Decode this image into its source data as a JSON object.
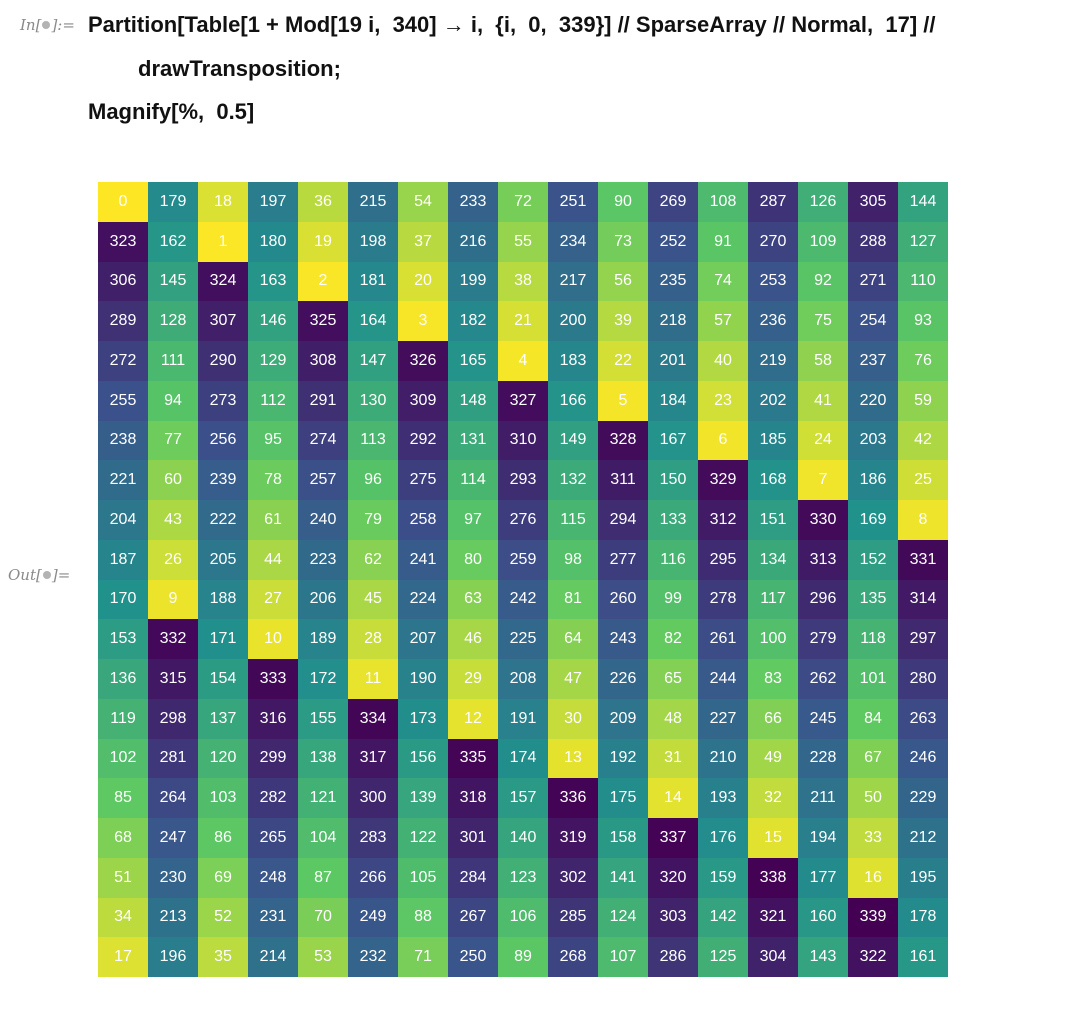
{
  "notebook": {
    "input_label": "In[",
    "input_label_end": "]:=",
    "output_label": "Out[",
    "output_label_end": "]=",
    "code_line_1": "Partition[Table[1 + Mod[19 i,  340] → i,  {i,  0,  339}] // SparseArray // Normal,  17] //",
    "code_line_2": "drawTransposition;",
    "code_line_3": "Magnify[%,  0.5]"
  },
  "grid": {
    "columns": 17,
    "colormap": [
      "#440154",
      "#3b528b",
      "#21918c",
      "#5ec962",
      "#fde725"
    ],
    "value_max": 339,
    "rows": [
      [
        0,
        179,
        18,
        197,
        36,
        215,
        54,
        233,
        72,
        251,
        90,
        269,
        108,
        287,
        126,
        305,
        144
      ],
      [
        323,
        162,
        1,
        180,
        19,
        198,
        37,
        216,
        55,
        234,
        73,
        252,
        91,
        270,
        109,
        288,
        127
      ],
      [
        306,
        145,
        324,
        163,
        2,
        181,
        20,
        199,
        38,
        217,
        56,
        235,
        74,
        253,
        92,
        271,
        110
      ],
      [
        289,
        128,
        307,
        146,
        325,
        164,
        3,
        182,
        21,
        200,
        39,
        218,
        57,
        236,
        75,
        254,
        93
      ],
      [
        272,
        111,
        290,
        129,
        308,
        147,
        326,
        165,
        4,
        183,
        22,
        201,
        40,
        219,
        58,
        237,
        76
      ],
      [
        255,
        94,
        273,
        112,
        291,
        130,
        309,
        148,
        327,
        166,
        5,
        184,
        23,
        202,
        41,
        220,
        59
      ],
      [
        238,
        77,
        256,
        95,
        274,
        113,
        292,
        131,
        310,
        149,
        328,
        167,
        6,
        185,
        24,
        203,
        42
      ],
      [
        221,
        60,
        239,
        78,
        257,
        96,
        275,
        114,
        293,
        132,
        311,
        150,
        329,
        168,
        7,
        186,
        25
      ],
      [
        204,
        43,
        222,
        61,
        240,
        79,
        258,
        97,
        276,
        115,
        294,
        133,
        312,
        151,
        330,
        169,
        8
      ],
      [
        187,
        26,
        205,
        44,
        223,
        62,
        241,
        80,
        259,
        98,
        277,
        116,
        295,
        134,
        313,
        152,
        331
      ],
      [
        170,
        9,
        188,
        27,
        206,
        45,
        224,
        63,
        242,
        81,
        260,
        99,
        278,
        117,
        296,
        135,
        314
      ],
      [
        153,
        332,
        171,
        10,
        189,
        28,
        207,
        46,
        225,
        64,
        243,
        82,
        261,
        100,
        279,
        118,
        297
      ],
      [
        136,
        315,
        154,
        333,
        172,
        11,
        190,
        29,
        208,
        47,
        226,
        65,
        244,
        83,
        262,
        101,
        280
      ],
      [
        119,
        298,
        137,
        316,
        155,
        334,
        173,
        12,
        191,
        30,
        209,
        48,
        227,
        66,
        245,
        84,
        263
      ],
      [
        102,
        281,
        120,
        299,
        138,
        317,
        156,
        335,
        174,
        13,
        192,
        31,
        210,
        49,
        228,
        67,
        246
      ],
      [
        85,
        264,
        103,
        282,
        121,
        300,
        139,
        318,
        157,
        336,
        175,
        14,
        193,
        32,
        211,
        50,
        229
      ],
      [
        68,
        247,
        86,
        265,
        104,
        283,
        122,
        301,
        140,
        319,
        158,
        337,
        176,
        15,
        194,
        33,
        212
      ],
      [
        51,
        230,
        69,
        248,
        87,
        266,
        105,
        284,
        123,
        302,
        141,
        320,
        159,
        338,
        177,
        16,
        195
      ],
      [
        34,
        213,
        52,
        231,
        70,
        249,
        88,
        267,
        106,
        285,
        124,
        303,
        142,
        321,
        160,
        339,
        178
      ],
      [
        17,
        196,
        35,
        214,
        53,
        232,
        71,
        250,
        89,
        268,
        107,
        286,
        125,
        304,
        143,
        322,
        161
      ]
    ]
  }
}
